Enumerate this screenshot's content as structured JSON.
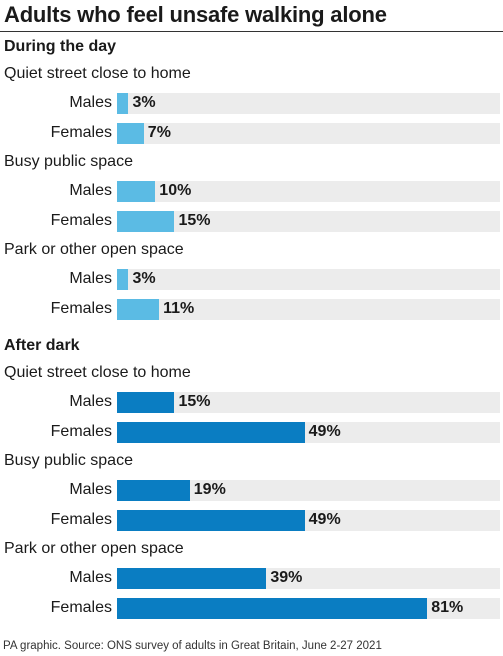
{
  "chart_data": {
    "type": "bar",
    "orientation": "horizontal",
    "title": "Adults who feel unsafe walking alone",
    "unit": "%",
    "xlim": [
      0,
      100
    ],
    "grid": false,
    "sections": [
      {
        "name": "During the day",
        "color": "#5bbbe4",
        "groups": [
          {
            "name": "Quiet street close to home",
            "rows": [
              {
                "category": "Males",
                "value": 3,
                "label": "3%"
              },
              {
                "category": "Females",
                "value": 7,
                "label": "7%"
              }
            ]
          },
          {
            "name": "Busy public space",
            "rows": [
              {
                "category": "Males",
                "value": 10,
                "label": "10%"
              },
              {
                "category": "Females",
                "value": 15,
                "label": "15%"
              }
            ]
          },
          {
            "name": "Park or other open space",
            "rows": [
              {
                "category": "Males",
                "value": 3,
                "label": "3%"
              },
              {
                "category": "Females",
                "value": 11,
                "label": "11%"
              }
            ]
          }
        ]
      },
      {
        "name": "After dark",
        "color": "#0a7dc2",
        "groups": [
          {
            "name": "Quiet street close to home",
            "rows": [
              {
                "category": "Males",
                "value": 15,
                "label": "15%"
              },
              {
                "category": "Females",
                "value": 49,
                "label": "49%"
              }
            ]
          },
          {
            "name": "Busy public space",
            "rows": [
              {
                "category": "Males",
                "value": 19,
                "label": "19%"
              },
              {
                "category": "Females",
                "value": 49,
                "label": "49%"
              }
            ]
          },
          {
            "name": "Park or other open space",
            "rows": [
              {
                "category": "Males",
                "value": 39,
                "label": "39%"
              },
              {
                "category": "Females",
                "value": 81,
                "label": "81%"
              }
            ]
          }
        ]
      }
    ],
    "track_color": "#ececec",
    "source": "PA graphic. Source: ONS survey of adults in Great Britain, June 2-27 2021"
  }
}
